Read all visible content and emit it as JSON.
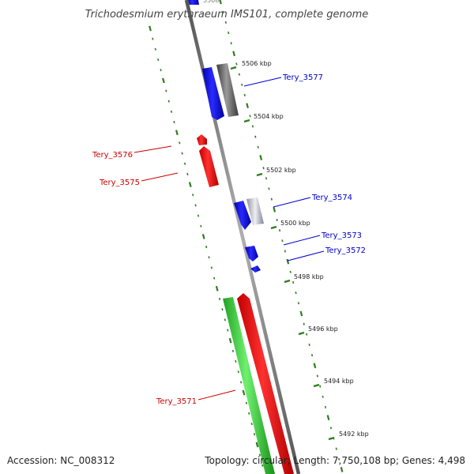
{
  "title": "Trichodesmium erythraeum IMS101, complete genome",
  "footer": {
    "accession": "Accession: NC_008312",
    "summary": "Topology: circular; Length: 7,750,108 bp; Genes: 4,498"
  },
  "colors": {
    "forward_label": "#0000cc",
    "reverse_label": "#cc0000",
    "tick": "#2e7d1e",
    "backbone": "#777777",
    "blue": "#1010e8",
    "red": "#e81010",
    "green": "#30c830",
    "gray": "#666666"
  },
  "ticks": [
    {
      "label": "5506 kbp"
    },
    {
      "label": "5504 kbp"
    },
    {
      "label": "5502 kbp"
    },
    {
      "label": "5500 kbp"
    },
    {
      "label": "5498 kbp"
    },
    {
      "label": "5496 kbp"
    },
    {
      "label": "5494 kbp"
    },
    {
      "label": "5492 kbp"
    }
  ],
  "gene_labels": [
    {
      "text": "Tery_3577",
      "strand": "forward"
    },
    {
      "text": "Tery_3576",
      "strand": "reverse"
    },
    {
      "text": "Tery_3575",
      "strand": "reverse"
    },
    {
      "text": "Tery_3574",
      "strand": "forward"
    },
    {
      "text": "Tery_3573",
      "strand": "forward"
    },
    {
      "text": "Tery_3572",
      "strand": "forward"
    },
    {
      "text": "Tery_3571",
      "strand": "reverse"
    }
  ]
}
